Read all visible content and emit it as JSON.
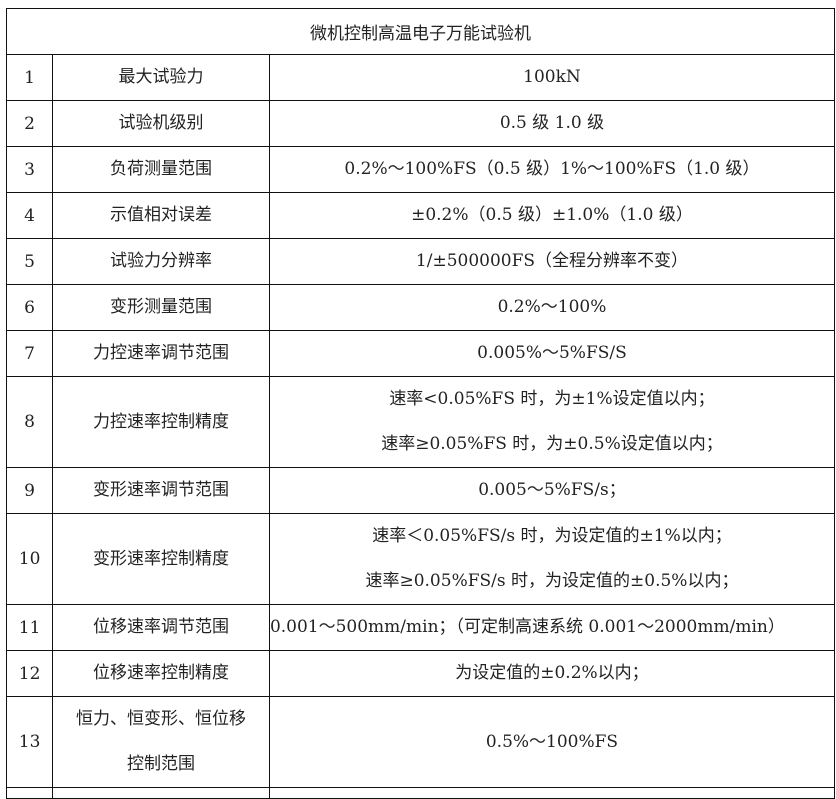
{
  "title": "微机控制高温电子万能试验机",
  "rows": [
    {
      "no": "1",
      "name": [
        "最大试验力"
      ],
      "value": [
        "100kN"
      ]
    },
    {
      "no": "2",
      "name": [
        "试验机级别"
      ],
      "value": [
        "0.5 级 1.0 级"
      ]
    },
    {
      "no": "3",
      "name": [
        "负荷测量范围"
      ],
      "value": [
        "0.2%～100%FS（0.5 级）1%～100%FS（1.0 级）"
      ]
    },
    {
      "no": "4",
      "name": [
        "示值相对误差"
      ],
      "value": [
        "±0.2%（0.5 级）±1.0%（1.0 级）"
      ]
    },
    {
      "no": "5",
      "name": [
        "试验力分辨率"
      ],
      "value": [
        "1/±500000FS（全程分辨率不变）"
      ]
    },
    {
      "no": "6",
      "name": [
        "变形测量范围"
      ],
      "value": [
        "0.2%～100%"
      ]
    },
    {
      "no": "7",
      "name": [
        "力控速率调节范围"
      ],
      "value": [
        "0.005%～5%FS/S"
      ]
    },
    {
      "no": "8",
      "name": [
        "力控速率控制精度"
      ],
      "value": [
        "速率<0.05%FS 时，为±1%设定值以内；",
        "速率≥0.05%FS 时，为±0.5%设定值以内；"
      ]
    },
    {
      "no": "9",
      "name": [
        "变形速率调节范围"
      ],
      "value": [
        "0.005～5%FS/s；"
      ]
    },
    {
      "no": "10",
      "name": [
        "变形速率控制精度"
      ],
      "value": [
        "速率＜0.05%FS/s 时，为设定值的±1%以内；",
        "速率≥0.05%FS/s 时，为设定值的±0.5%以内；"
      ]
    },
    {
      "no": "11",
      "name": [
        "位移速率调节范围"
      ],
      "value": [
        "0.001～500mm/min；（可定制高速系统 0.001～2000mm/min）"
      ]
    },
    {
      "no": "12",
      "name": [
        "位移速率控制精度"
      ],
      "value": [
        "为设定值的±0.2%以内；"
      ]
    },
    {
      "no": "13",
      "name": [
        "恒力、恒变形、恒位移",
        "控制范围"
      ],
      "value": [
        "0.5%～100%FS"
      ]
    }
  ]
}
